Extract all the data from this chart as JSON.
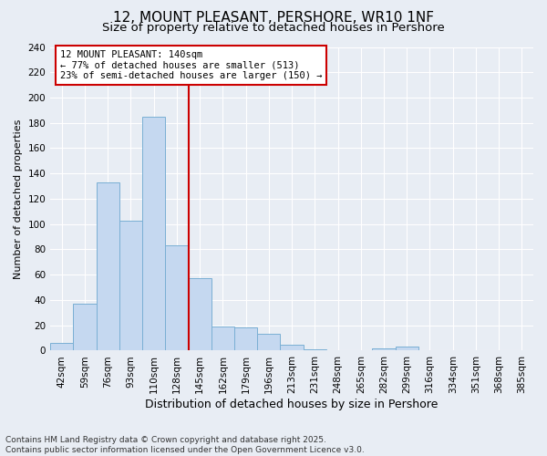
{
  "title": "12, MOUNT PLEASANT, PERSHORE, WR10 1NF",
  "subtitle": "Size of property relative to detached houses in Pershore",
  "xlabel": "Distribution of detached houses by size in Pershore",
  "ylabel": "Number of detached properties",
  "categories": [
    "42sqm",
    "59sqm",
    "76sqm",
    "93sqm",
    "110sqm",
    "128sqm",
    "145sqm",
    "162sqm",
    "179sqm",
    "196sqm",
    "213sqm",
    "231sqm",
    "248sqm",
    "265sqm",
    "282sqm",
    "299sqm",
    "316sqm",
    "334sqm",
    "351sqm",
    "368sqm",
    "385sqm"
  ],
  "values": [
    6,
    37,
    133,
    103,
    185,
    83,
    57,
    19,
    18,
    13,
    5,
    1,
    0,
    0,
    2,
    3,
    0,
    0,
    0,
    0,
    0
  ],
  "bar_color": "#c5d8f0",
  "bar_edge_color": "#7aafd4",
  "bg_color": "#e8edf4",
  "grid_color": "#ffffff",
  "vline_x": 6,
  "vline_color": "#cc0000",
  "annotation_title": "12 MOUNT PLEASANT: 140sqm",
  "annotation_line1": "← 77% of detached houses are smaller (513)",
  "annotation_line2": "23% of semi-detached houses are larger (150) →",
  "annotation_box_color": "#ffffff",
  "annotation_border_color": "#cc0000",
  "ylim": [
    0,
    240
  ],
  "yticks": [
    0,
    20,
    40,
    60,
    80,
    100,
    120,
    140,
    160,
    180,
    200,
    220,
    240
  ],
  "footer": "Contains HM Land Registry data © Crown copyright and database right 2025.\nContains public sector information licensed under the Open Government Licence v3.0.",
  "title_fontsize": 11,
  "subtitle_fontsize": 9.5,
  "xlabel_fontsize": 9,
  "ylabel_fontsize": 8,
  "tick_fontsize": 7.5,
  "footer_fontsize": 6.5
}
